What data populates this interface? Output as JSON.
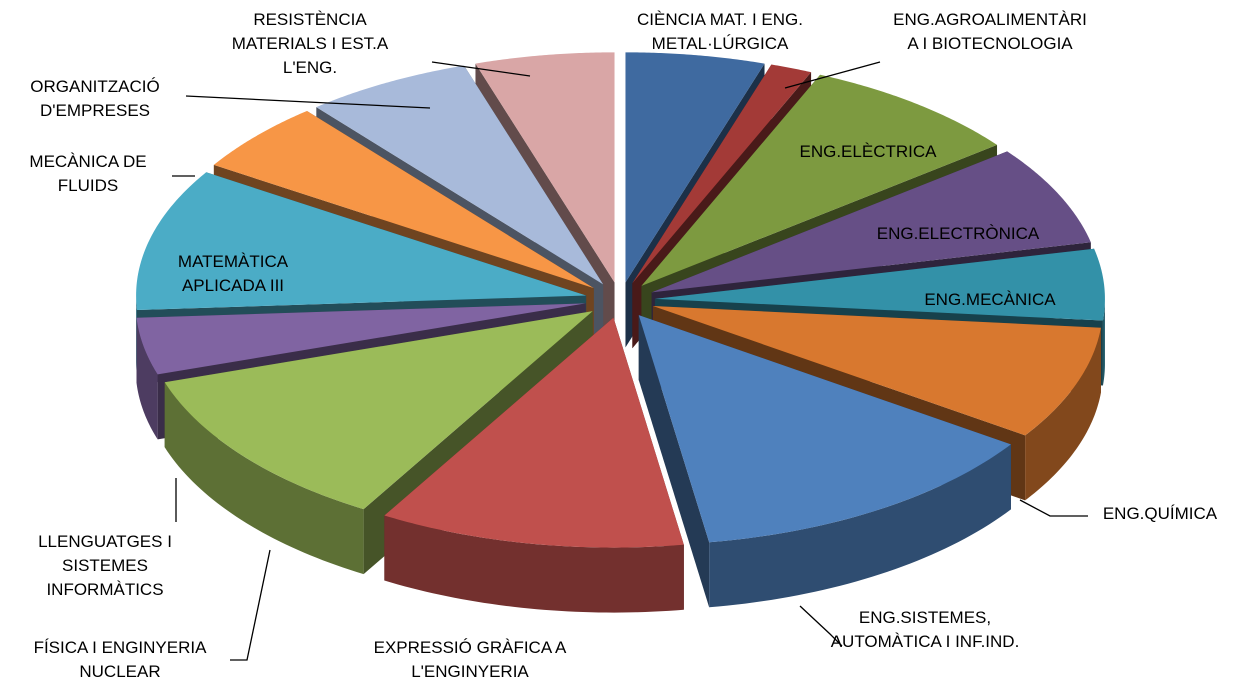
{
  "chart_data": {
    "type": "pie",
    "categories": [
      "CIÈNCIA MAT. I ENG. METAL·LÚRGICA",
      "ENG.AGROALIMENTÀRIA I BIOTECNOLOGIA",
      "ENG.ELÈCTRICA",
      "ENG.ELECTRÒNICA",
      "ENG.MECÀNICA",
      "ENG.QUÍMICA",
      "ENG.SISTEMES, AUTOMÀTICA I INF.IND.",
      "EXPRESSIÓ GRÀFICA A L'ENGINYERIA",
      "FÍSICA I ENGINYERIA NUCLEAR",
      "LLENGUATGES I SISTEMES INFORMÀTICS",
      "MATEMÀTICA APLICADA III",
      "MECÀNICA DE FLUIDS",
      "ORGANITZACIÓ D'EMPRESES",
      "RESISTÈNCIA MATERIALS I EST.A L'ENG."
    ],
    "values": [
      5,
      1.5,
      8,
      7,
      5,
      8,
      13,
      11,
      11.5,
      4,
      10,
      5,
      6,
      5
    ],
    "colors": [
      "#3f6aa0",
      "#a33a37",
      "#7d9a40",
      "#664f86",
      "#3391a8",
      "#d8782f",
      "#4f81bd",
      "#c0504d",
      "#9bbb59",
      "#8064a2",
      "#4bacc6",
      "#f79646",
      "#a8bada",
      "#d9a6a6"
    ]
  }
}
